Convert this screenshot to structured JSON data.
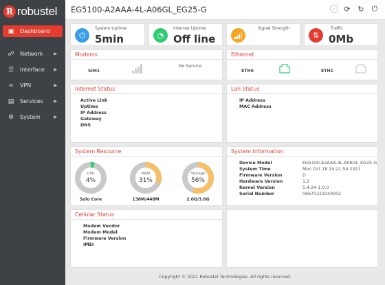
{
  "brand": {
    "logo_letter": "R",
    "logo_text": "robustel"
  },
  "header": {
    "model": "EG5100-A2AAA-4L-A06GL_EG25-G"
  },
  "top_icons": [
    "check-icon",
    "refresh-icon",
    "reboot-icon",
    "logout-icon"
  ],
  "sidebar": {
    "items": [
      {
        "label": "Dashboard",
        "icon": "dashboard-icon",
        "glyph": "▣",
        "active": true,
        "has_children": false
      },
      {
        "label": "Network",
        "icon": "network-icon",
        "glyph": "☍",
        "active": false,
        "has_children": true
      },
      {
        "label": "Interface",
        "icon": "interface-icon",
        "glyph": "☰",
        "active": false,
        "has_children": true
      },
      {
        "label": "VPN",
        "icon": "vpn-icon",
        "glyph": "∞",
        "active": false,
        "has_children": true
      },
      {
        "label": "Services",
        "icon": "services-icon",
        "glyph": "▤",
        "active": false,
        "has_children": true
      },
      {
        "label": "System",
        "icon": "system-icon",
        "glyph": "⚙",
        "active": false,
        "has_children": true
      }
    ]
  },
  "stats": {
    "uptime": {
      "label": "System Uptime",
      "value": "5min",
      "color": "#3a9ee6"
    },
    "internet": {
      "label": "Internet Uptime",
      "value": "Off line",
      "color": "#2ecc71"
    },
    "signal": {
      "label": "Signal Strength",
      "value": "",
      "color": "#f5a623"
    },
    "traffic": {
      "label": "Traffic",
      "value": "0Mb",
      "color": "#e63c2f"
    }
  },
  "modems": {
    "title": "Modems",
    "sim_label": "SIM1",
    "status": "No Service"
  },
  "ethernet": {
    "title": "Ethernet",
    "ports": [
      "ETH0",
      "ETH1"
    ],
    "eth0_color": "#2ecc71",
    "eth1_color": "#cccccc"
  },
  "internet_status": {
    "title": "Internet Status",
    "fields": [
      "Active Link",
      "Uptime",
      "IP Address",
      "Gateway",
      "DNS"
    ]
  },
  "lan_status": {
    "title": "Lan Status",
    "fields": [
      "IP Address",
      "MAC Address"
    ]
  },
  "system_resource": {
    "title": "System Resource",
    "cpu": {
      "label": "CPU",
      "value": "4%",
      "percent": 4,
      "caption": "Solo Core",
      "color": "#2ecc71"
    },
    "ram": {
      "label": "RAM",
      "value": "31%",
      "percent": 31,
      "caption": "138M/448M",
      "color": "#f5c06a"
    },
    "storage": {
      "label": "Storage",
      "value": "56%",
      "percent": 56,
      "caption": "2.0G/3.6G",
      "color": "#f5c06a"
    }
  },
  "system_info": {
    "title": "System Information",
    "rows": [
      {
        "key": "Device Model",
        "value": "EG5100-A2AAA-4L-A06GL_EG25-G"
      },
      {
        "key": "System Time",
        "value": "Mon Oct 18 14:21:54 2021"
      },
      {
        "key": "Firmware Version",
        "value": "()"
      },
      {
        "key": "Hardware Version",
        "value": "1.2"
      },
      {
        "key": "Kernel Version",
        "value": "5.4.24-1.0.0"
      },
      {
        "key": "Serial Number",
        "value": "06670321040002"
      }
    ]
  },
  "cellular_status": {
    "title": "Cellular Status",
    "fields": [
      "Modem Vendor",
      "Modem Model",
      "Firmware Version",
      "IMEI"
    ]
  },
  "footer": {
    "text": "Copyright © 2021 Robustel Technologies. All rights reserved."
  }
}
